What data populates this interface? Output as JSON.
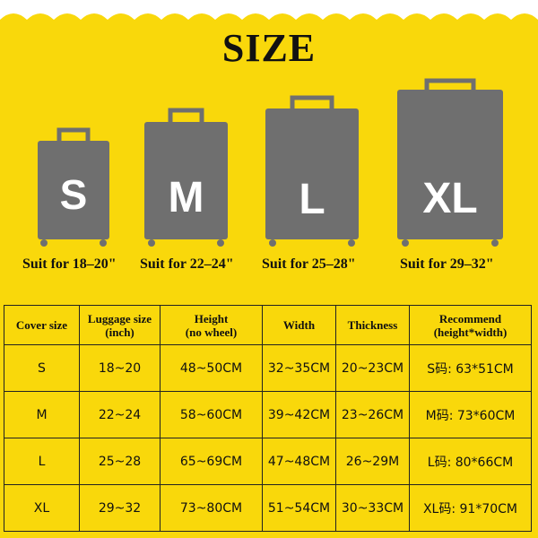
{
  "title": "SIZE",
  "colors": {
    "background": "#f9d80b",
    "suitcase": "#6f6f6f",
    "wave": "#ffffff",
    "text": "#111111"
  },
  "suitcases": [
    {
      "letter": "S",
      "label": "Suit for 18–20\""
    },
    {
      "letter": "M",
      "label": "Suit for 22–24\""
    },
    {
      "letter": "L",
      "label": "Suit for 25–28\""
    },
    {
      "letter": "XL",
      "label": "Suit for 29–32\""
    }
  ],
  "table": {
    "headers": [
      {
        "line1": "Cover size",
        "line2": ""
      },
      {
        "line1": "Luggage size",
        "line2": "(inch)"
      },
      {
        "line1": "Height",
        "line2": "(no wheel)"
      },
      {
        "line1": "Width",
        "line2": ""
      },
      {
        "line1": "Thickness",
        "line2": ""
      },
      {
        "line1": "Recommend",
        "line2": "(height*width)"
      }
    ],
    "rows": [
      [
        "S",
        "18~20",
        "48~50CM",
        "32~35CM",
        "20~23CM",
        "S码: 63*51CM"
      ],
      [
        "M",
        "22~24",
        "58~60CM",
        "39~42CM",
        "23~26CM",
        "M码: 73*60CM"
      ],
      [
        "L",
        "25~28",
        "65~69CM",
        "47~48CM",
        "26~29M",
        "L码: 80*66CM"
      ],
      [
        "XL",
        "29~32",
        "73~80CM",
        "51~54CM",
        "30~33CM",
        "XL码: 91*70CM"
      ]
    ]
  }
}
